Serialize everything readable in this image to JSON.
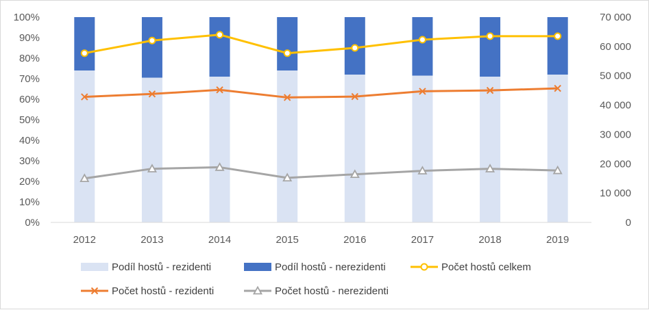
{
  "chart_data": {
    "type": "bar",
    "title": "",
    "categories": [
      "2012",
      "2013",
      "2014",
      "2015",
      "2016",
      "2017",
      "2018",
      "2019"
    ],
    "y_left": {
      "min": 0,
      "max": 100,
      "step": 10,
      "unit": "%",
      "tick_labels": [
        "0%",
        "10%",
        "20%",
        "30%",
        "40%",
        "50%",
        "60%",
        "70%",
        "80%",
        "90%",
        "100%"
      ]
    },
    "y_right": {
      "min": 0,
      "max": 70000,
      "step": 10000,
      "tick_labels": [
        "0",
        "10 000",
        "20 000",
        "30 000",
        "40 000",
        "50 000",
        "60 000",
        "70 000"
      ]
    },
    "grid": false,
    "legend_position": "bottom",
    "series": [
      {
        "name": "Podíl hostů - rezidenti",
        "kind": "stacked-bar",
        "axis": "left",
        "color": "#dae3f3",
        "values": [
          74,
          70.5,
          71,
          74,
          72,
          71.5,
          71,
          72
        ]
      },
      {
        "name": "Podíl hostů - nerezidenti",
        "kind": "stacked-bar",
        "axis": "left",
        "color": "#4472c4",
        "values": [
          26,
          29.5,
          29,
          26,
          28,
          28.5,
          29,
          28
        ]
      },
      {
        "name": "Počet hostů celkem",
        "kind": "line",
        "axis": "right",
        "color": "#ffc000",
        "marker": "circle",
        "values": [
          57700,
          62000,
          64000,
          57700,
          59500,
          62300,
          63500,
          63500
        ]
      },
      {
        "name": "Počet hostů - rezidenti",
        "kind": "line",
        "axis": "right",
        "color": "#ed7d31",
        "marker": "x",
        "values": [
          42800,
          43800,
          45200,
          42600,
          42900,
          44700,
          45000,
          45700
        ]
      },
      {
        "name": "Počet hostů - nerezidenti",
        "kind": "line",
        "axis": "right",
        "color": "#a5a5a5",
        "marker": "triangle",
        "values": [
          15000,
          18300,
          18800,
          15200,
          16400,
          17600,
          18300,
          17700
        ]
      }
    ]
  }
}
